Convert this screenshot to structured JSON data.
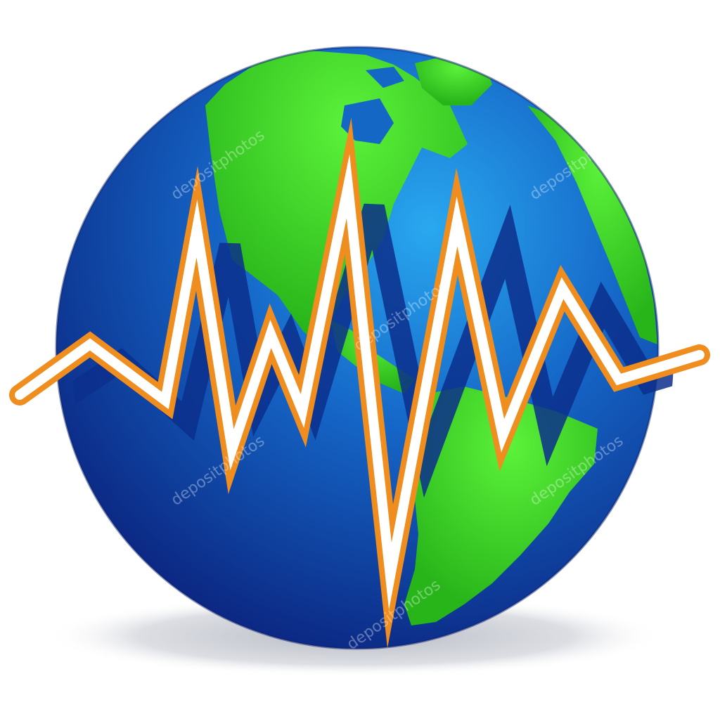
{
  "illustration": {
    "subject": "globe-with-seismic-wave",
    "watermark_text": "depositphotos",
    "colors": {
      "ocean_light": "#1f8fe0",
      "ocean_dark": "#0d2a86",
      "land": "#35d021",
      "land_highlight": "#5cf23a",
      "wave_outline": "#ef8d1e",
      "wave_fill": "#ffffff",
      "wave_shadow": "#0c2f8c",
      "ground_shadow": "#c8cbd3"
    }
  }
}
